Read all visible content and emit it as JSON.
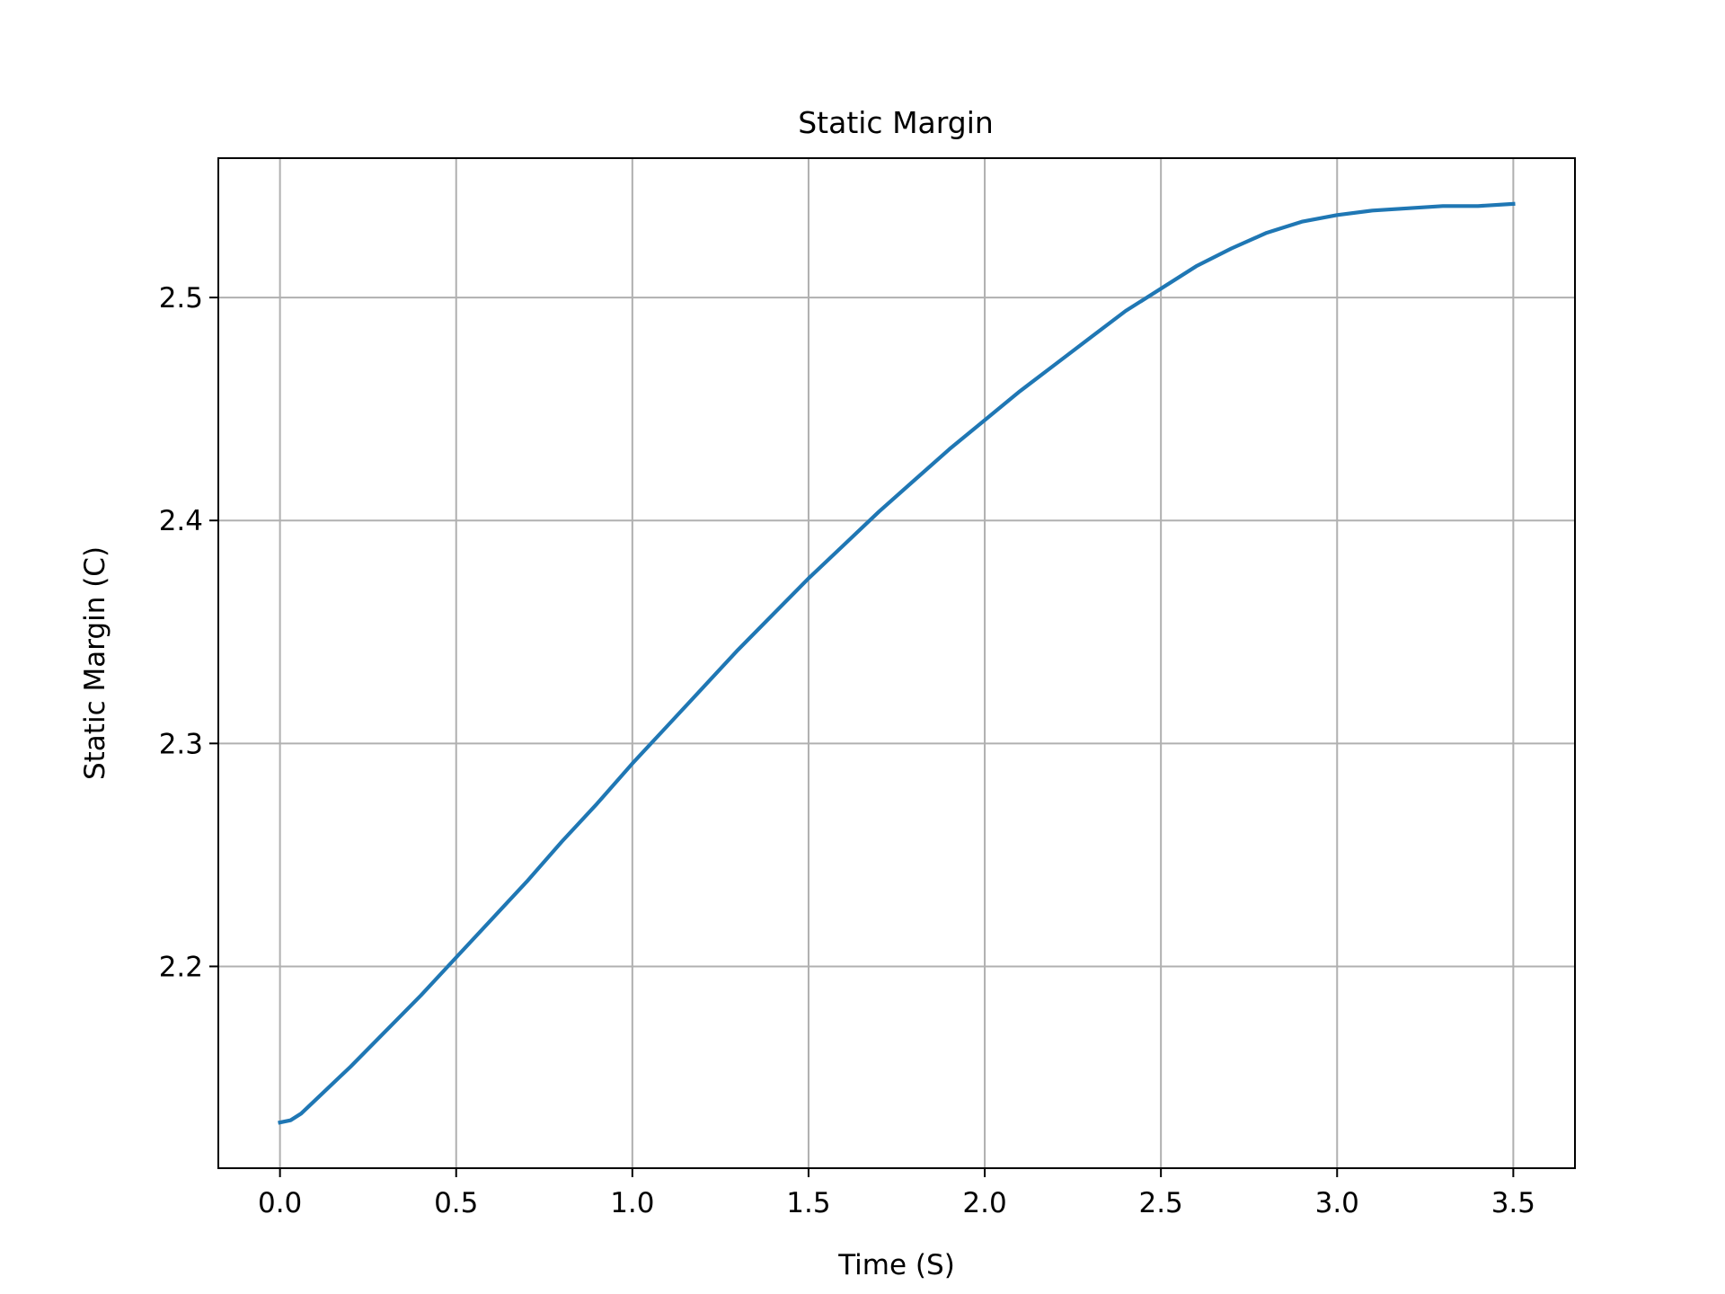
{
  "chart_data": {
    "type": "line",
    "title": "Static Margin",
    "xlabel": "Time (S)",
    "ylabel": "Static Margin (C)",
    "xlim": [
      -0.175,
      3.675
    ],
    "ylim": [
      2.1095,
      2.5625
    ],
    "xticks": [
      0.0,
      0.5,
      1.0,
      1.5,
      2.0,
      2.5,
      3.0,
      3.5
    ],
    "xtick_labels": [
      "0.0",
      "0.5",
      "1.0",
      "1.5",
      "2.0",
      "2.5",
      "3.0",
      "3.5"
    ],
    "yticks": [
      2.2,
      2.3,
      2.4,
      2.5
    ],
    "ytick_labels": [
      "2.2",
      "2.3",
      "2.4",
      "2.5"
    ],
    "grid": true,
    "series": [
      {
        "color": "#1f77b4",
        "x": [
          0.0,
          0.03,
          0.06,
          0.1,
          0.2,
          0.3,
          0.4,
          0.5,
          0.6,
          0.7,
          0.8,
          0.9,
          1.0,
          1.1,
          1.2,
          1.3,
          1.4,
          1.5,
          1.6,
          1.7,
          1.8,
          1.9,
          2.0,
          2.1,
          2.2,
          2.3,
          2.4,
          2.5,
          2.6,
          2.7,
          2.8,
          2.9,
          3.0,
          3.1,
          3.2,
          3.3,
          3.4,
          3.5
        ],
        "y": [
          2.13,
          2.131,
          2.134,
          2.14,
          2.155,
          2.171,
          2.187,
          2.204,
          2.221,
          2.238,
          2.256,
          2.273,
          2.291,
          2.308,
          2.325,
          2.342,
          2.358,
          2.374,
          2.389,
          2.404,
          2.418,
          2.432,
          2.445,
          2.458,
          2.47,
          2.482,
          2.494,
          2.504,
          2.514,
          2.522,
          2.529,
          2.534,
          2.537,
          2.539,
          2.54,
          2.541,
          2.541,
          2.542
        ]
      }
    ]
  }
}
